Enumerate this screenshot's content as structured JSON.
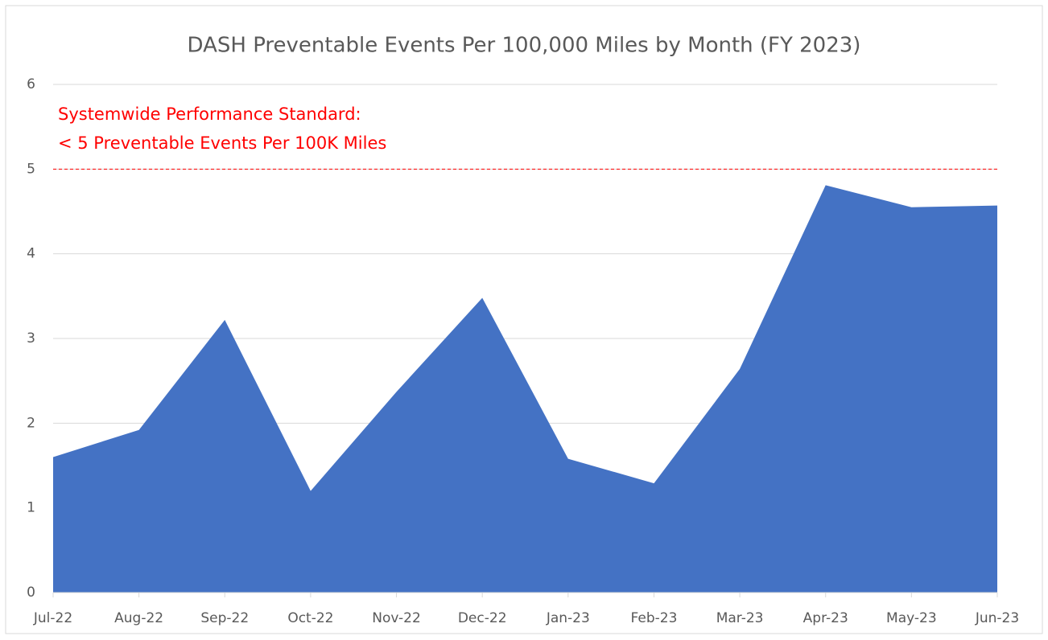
{
  "chart_data": {
    "type": "area",
    "title": "DASH Preventable Events Per 100,000 Miles by Month (FY 2023)",
    "categories": [
      "Jul-22",
      "Aug-22",
      "Sep-22",
      "Oct-22",
      "Nov-22",
      "Dec-22",
      "Jan-23",
      "Feb-23",
      "Mar-23",
      "Apr-23",
      "May-23",
      "Jun-23"
    ],
    "values": [
      1.6,
      1.92,
      3.22,
      1.2,
      2.37,
      3.48,
      1.58,
      1.29,
      2.64,
      4.81,
      4.55,
      4.57
    ],
    "color": "#4472c4",
    "ylim": [
      0,
      6
    ],
    "yticks": [
      0,
      1,
      2,
      3,
      4,
      5,
      6
    ],
    "grid": true,
    "reference_line": {
      "value": 5,
      "color": "#ff0000"
    },
    "annotation": [
      "Systemwide Performance Standard:",
      "< 5 Preventable Events Per 100K Miles"
    ]
  }
}
